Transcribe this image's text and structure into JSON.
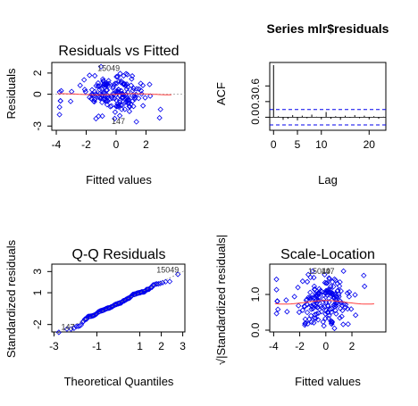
{
  "chart_data": [
    {
      "id": "resid_fitted",
      "type": "scatter",
      "title": "Residuals vs Fitted",
      "xlabel": "Fitted values",
      "ylabel": "Residuals",
      "xlim": [
        -4.3,
        4.6
      ],
      "ylim": [
        -3.4,
        3.0
      ],
      "xticks": [
        -4,
        -2,
        0,
        2
      ],
      "xticklabels": [
        "-4",
        "-2",
        "0",
        "2"
      ],
      "yticks": [
        -3,
        0,
        2
      ],
      "yticklabels": [
        "-3",
        "0",
        "2"
      ],
      "point_color": "#0000ee",
      "line_color": "#ff4040",
      "annotations": [
        {
          "text": "15049",
          "x": -0.5,
          "y": 2.2
        },
        {
          "text": "147",
          "x": 0.15,
          "y": -2.8
        }
      ],
      "n_points": 180
    },
    {
      "id": "acf",
      "type": "bar",
      "title": "Series  mlr$residuals",
      "xlabel": "Lag",
      "ylabel": "ACF",
      "xlim": [
        -0.8,
        23.5
      ],
      "ylim": [
        -0.25,
        1.05
      ],
      "xticks": [
        0,
        5,
        10,
        20
      ],
      "xticklabels": [
        "0",
        "5",
        "10",
        "20"
      ],
      "yticks": [
        0.0,
        0.3,
        0.6
      ],
      "yticklabels": [
        "0.0",
        "0.3",
        "0.6"
      ],
      "lags": [
        0,
        1,
        2,
        3,
        4,
        5,
        6,
        7,
        8,
        9,
        10,
        11,
        12,
        13,
        14,
        15,
        16,
        17,
        18,
        19,
        20,
        21,
        22,
        23
      ],
      "values": [
        1.0,
        0.02,
        -0.05,
        -0.03,
        0.04,
        -0.06,
        0.03,
        -0.02,
        0.05,
        0.01,
        -0.04,
        0.1,
        -0.03,
        0.02,
        -0.05,
        0.03,
        -0.01,
        0.04,
        -0.02,
        0.03,
        -0.04,
        0.02,
        -0.03,
        0.01
      ],
      "conf_bound": 0.147,
      "ci_color": "#0000ee"
    },
    {
      "id": "qq",
      "type": "scatter",
      "title": "Q-Q Residuals",
      "xlabel": "Theoretical Quantiles",
      "ylabel": "Standardized residuals",
      "xlim": [
        -3.1,
        3.1
      ],
      "ylim": [
        -2.7,
        3.7
      ],
      "xticks": [
        -3,
        -1,
        1,
        2,
        3
      ],
      "xticklabels": [
        "-3",
        "-1",
        "1",
        "2",
        "3"
      ],
      "yticks": [
        -2,
        1,
        3
      ],
      "yticklabels": [
        "-2",
        "1",
        "3"
      ],
      "point_color": "#0000ee",
      "annotations": [
        {
          "text": "15049",
          "x": 2.3,
          "y": 2.9
        },
        {
          "text": "147",
          "x": -2.35,
          "y": -2.5
        }
      ],
      "n_points": 180
    },
    {
      "id": "scale_location",
      "type": "scatter",
      "title": "Scale-Location",
      "xlabel": "Fitted values",
      "ylabel": "√|Standardized residuals|",
      "xlim": [
        -4.3,
        4.6
      ],
      "ylim": [
        -0.05,
        1.85
      ],
      "xticks": [
        -4,
        -2,
        0,
        2
      ],
      "xticklabels": [
        "-4",
        "-2",
        "0",
        "2"
      ],
      "yticks": [
        0.0,
        1.0
      ],
      "yticklabels": [
        "0.0",
        "1.0"
      ],
      "point_color": "#0000ee",
      "line_color": "#ff4040",
      "annotations": [
        {
          "text": "15049",
          "x": -0.5,
          "y": 1.58
        },
        {
          "text": "147",
          "x": 0.15,
          "y": 1.58
        }
      ],
      "n_points": 180
    }
  ]
}
